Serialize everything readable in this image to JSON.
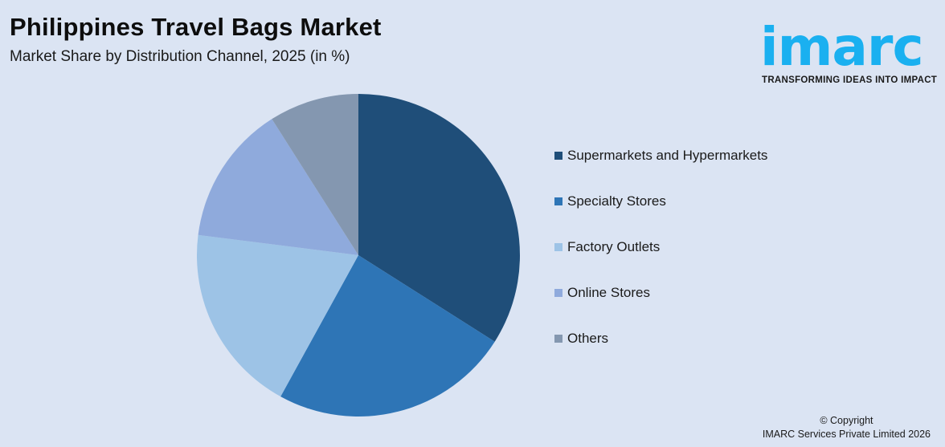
{
  "header": {
    "title": "Philippines Travel Bags Market",
    "subtitle": "Market Share by Distribution Channel, 2025 (in %)"
  },
  "logo": {
    "wordmark": "imarc",
    "tagline": "TRANSFORMING IDEAS INTO IMPACT",
    "color": "#1ab0f0"
  },
  "footer": {
    "copyright_line1": "© Copyright",
    "copyright_line2": "IMARC Services Private Limited 2026"
  },
  "chart_data": {
    "type": "pie",
    "title": "Philippines Travel Bags Market",
    "subtitle": "Market Share by Distribution Channel, 2025 (in %)",
    "categories": [
      "Supermarkets and Hypermarkets",
      "Specialty Stores",
      "Factory Outlets",
      "Online Stores",
      "Others"
    ],
    "values": [
      34,
      24,
      19,
      14,
      9
    ],
    "colors": [
      "#1f4e79",
      "#2e75b6",
      "#9dc3e6",
      "#8faadc",
      "#8497b0"
    ],
    "start_angle": "12 o'clock, clockwise",
    "legend_position": "right",
    "data_labels": false
  }
}
